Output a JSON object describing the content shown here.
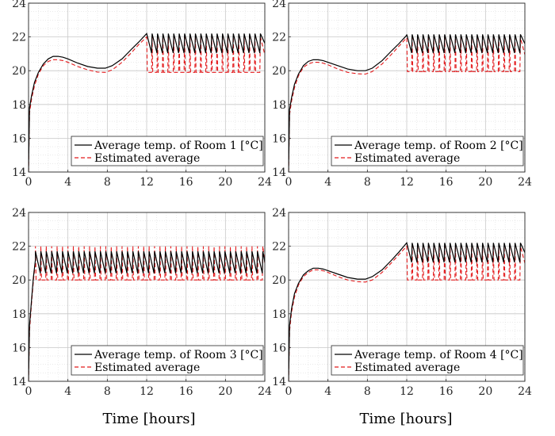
{
  "figure": {
    "xlabel_left": "Time [hours]",
    "xlabel_right": "Time [hours]"
  },
  "chart_data": [
    {
      "type": "line",
      "xlim": [
        0,
        24
      ],
      "ylim": [
        14,
        24
      ],
      "xticks": [
        "0",
        "4",
        "8",
        "12",
        "16",
        "20",
        "24"
      ],
      "yticks": [
        "14",
        "16",
        "18",
        "20",
        "22",
        "24"
      ],
      "grid": true,
      "legend_position": "bottom-right",
      "legend": [
        "Average temp. of Room 1 [°C]",
        "Estimated average"
      ],
      "series": [
        {
          "name": "Average temp. of Room 1 [°C]",
          "color": "#000000",
          "style": "solid",
          "x": [
            0,
            0.1,
            0.3,
            0.6,
            1.0,
            1.5,
            2.0,
            2.5,
            3.0,
            3.5,
            4.0,
            5.0,
            6.0,
            7.0,
            7.8,
            8.5,
            9.5,
            10.5,
            11.2,
            12.0
          ],
          "y": [
            14.0,
            17.8,
            18.5,
            19.3,
            19.9,
            20.4,
            20.7,
            20.85,
            20.85,
            20.8,
            20.7,
            20.45,
            20.25,
            20.15,
            20.15,
            20.3,
            20.7,
            21.3,
            21.7,
            22.2
          ]
        },
        {
          "name": "Estimated average",
          "color": "#e31a1c",
          "style": "dashed",
          "x": [
            0,
            0.1,
            0.3,
            0.6,
            1.0,
            1.5,
            2.0,
            2.5,
            3.0,
            3.5,
            4.0,
            5.0,
            6.0,
            7.0,
            7.8,
            8.5,
            9.5,
            10.5,
            11.2,
            12.0
          ],
          "y": [
            14.0,
            17.5,
            18.3,
            19.1,
            19.8,
            20.3,
            20.55,
            20.65,
            20.65,
            20.6,
            20.5,
            20.25,
            20.05,
            19.92,
            19.9,
            20.05,
            20.5,
            21.1,
            21.55,
            22.0
          ]
        }
      ],
      "oscillation": {
        "x_start": 12.0,
        "x_end": 24.0,
        "period": 0.55,
        "actual_range": [
          21.05,
          22.2
        ],
        "estimated_range": [
          19.9,
          22.0
        ]
      }
    },
    {
      "type": "line",
      "xlim": [
        0,
        24
      ],
      "ylim": [
        14,
        24
      ],
      "xticks": [
        "0",
        "4",
        "8",
        "12",
        "16",
        "20",
        "24"
      ],
      "yticks": [
        "14",
        "16",
        "18",
        "20",
        "22",
        "24"
      ],
      "grid": true,
      "legend_position": "bottom-right",
      "legend": [
        "Average temp. of Room 2 [°C]",
        "Estimated average"
      ],
      "series": [
        {
          "name": "Average temp. of Room 2 [°C]",
          "color": "#000000",
          "style": "solid",
          "x": [
            0,
            0.1,
            0.3,
            0.6,
            1.0,
            1.5,
            2.0,
            2.5,
            3.0,
            3.5,
            4.0,
            5.0,
            6.0,
            7.0,
            7.8,
            8.5,
            9.5,
            10.5,
            11.2,
            12.0
          ],
          "y": [
            14.0,
            17.7,
            18.4,
            19.2,
            19.8,
            20.3,
            20.55,
            20.65,
            20.65,
            20.6,
            20.5,
            20.3,
            20.1,
            20.0,
            20.0,
            20.15,
            20.6,
            21.2,
            21.6,
            22.1
          ]
        },
        {
          "name": "Estimated average",
          "color": "#e31a1c",
          "style": "dashed",
          "x": [
            0,
            0.1,
            0.3,
            0.6,
            1.0,
            1.5,
            2.0,
            2.5,
            3.0,
            3.5,
            4.0,
            5.0,
            6.0,
            7.0,
            7.8,
            8.5,
            9.5,
            10.5,
            11.2,
            12.0
          ],
          "y": [
            14.0,
            17.4,
            18.2,
            19.0,
            19.7,
            20.2,
            20.4,
            20.5,
            20.5,
            20.45,
            20.35,
            20.1,
            19.9,
            19.82,
            19.8,
            19.95,
            20.4,
            21.0,
            21.45,
            21.95
          ]
        }
      ],
      "oscillation": {
        "x_start": 12.0,
        "x_end": 24.0,
        "period": 0.55,
        "actual_range": [
          21.05,
          22.15
        ],
        "estimated_range": [
          19.95,
          21.95
        ]
      }
    },
    {
      "type": "line",
      "xlim": [
        0,
        24
      ],
      "ylim": [
        14,
        24
      ],
      "xticks": [
        "0",
        "4",
        "8",
        "12",
        "16",
        "20",
        "24"
      ],
      "yticks": [
        "14",
        "16",
        "18",
        "20",
        "22",
        "24"
      ],
      "grid": true,
      "legend_position": "bottom-right",
      "legend": [
        "Average temp. of Room 3 [°C]",
        "Estimated average"
      ],
      "series": [
        {
          "name": "Average temp. of Room 3 [°C]",
          "color": "#000000",
          "style": "solid",
          "x": [
            0,
            0.1,
            0.3,
            0.5,
            0.7
          ],
          "y": [
            14.0,
            17.3,
            18.8,
            20.2,
            21.2
          ]
        },
        {
          "name": "Estimated average",
          "color": "#e31a1c",
          "style": "dashed",
          "x": [
            0,
            0.1,
            0.3,
            0.5,
            0.7
          ],
          "y": [
            14.0,
            17.0,
            18.6,
            20.0,
            21.0
          ]
        }
      ],
      "oscillation": {
        "x_start": 0.7,
        "x_end": 24.0,
        "period": 0.55,
        "actual_range": [
          20.4,
          21.7
        ],
        "estimated_range": [
          20.0,
          22.0
        ]
      }
    },
    {
      "type": "line",
      "xlim": [
        0,
        24
      ],
      "ylim": [
        14,
        24
      ],
      "xticks": [
        "0",
        "4",
        "8",
        "12",
        "16",
        "20",
        "24"
      ],
      "yticks": [
        "14",
        "16",
        "18",
        "20",
        "22",
        "24"
      ],
      "grid": true,
      "legend_position": "bottom-right",
      "legend": [
        "Average temp. of Room 4 [°C]",
        "Estimated average"
      ],
      "series": [
        {
          "name": "Average temp. of Room 4 [°C]",
          "color": "#000000",
          "style": "solid",
          "x": [
            0,
            0.1,
            0.3,
            0.6,
            1.0,
            1.5,
            2.0,
            2.5,
            3.0,
            3.5,
            4.0,
            5.0,
            6.0,
            7.0,
            7.8,
            8.5,
            9.5,
            10.5,
            11.2,
            12.0
          ],
          "y": [
            14.0,
            17.3,
            18.3,
            19.2,
            19.8,
            20.3,
            20.55,
            20.7,
            20.7,
            20.65,
            20.55,
            20.35,
            20.15,
            20.05,
            20.05,
            20.2,
            20.6,
            21.2,
            21.65,
            22.2
          ]
        },
        {
          "name": "Estimated average",
          "color": "#e31a1c",
          "style": "dashed",
          "x": [
            0,
            0.1,
            0.3,
            0.6,
            1.0,
            1.5,
            2.0,
            2.5,
            3.0,
            3.5,
            4.0,
            5.0,
            6.0,
            7.0,
            7.8,
            8.5,
            9.5,
            10.5,
            11.2,
            12.0
          ],
          "y": [
            14.0,
            17.0,
            18.1,
            19.0,
            19.7,
            20.2,
            20.45,
            20.6,
            20.6,
            20.55,
            20.45,
            20.2,
            20.0,
            19.9,
            19.88,
            20.0,
            20.45,
            21.05,
            21.5,
            22.0
          ]
        }
      ],
      "oscillation": {
        "x_start": 12.0,
        "x_end": 24.0,
        "period": 0.55,
        "actual_range": [
          21.05,
          22.2
        ],
        "estimated_range": [
          20.0,
          22.0
        ]
      }
    }
  ]
}
